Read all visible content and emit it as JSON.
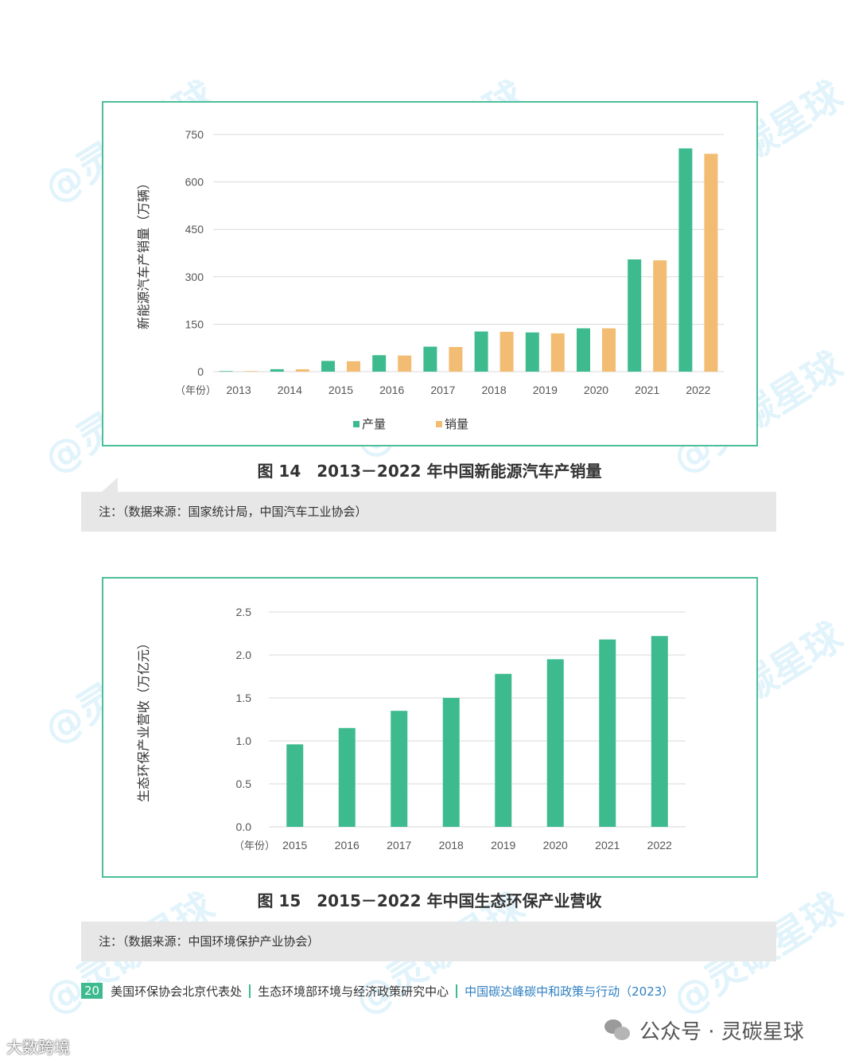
{
  "page": {
    "watermark": "@灵碳星球",
    "page_number": "20",
    "footer_org1": "美国环保协会北京代表处",
    "footer_org2": "生态环境部环境与经济政策研究中心",
    "footer_title": "中国碳达峰碳中和政策与行动（2023）",
    "wechat_label": "公众号 · 灵碳星球",
    "brand_corner": "大数跨境",
    "colors": {
      "frame": "#4dbf98",
      "green": "#3dbb8f",
      "orange": "#f2bd73",
      "note_bg": "#e7e7e7"
    }
  },
  "figure14": {
    "caption": "图 14　2013－2022 年中国新能源汽车产销量",
    "note": "注：（数据来源：国家统计局，中国汽车工业协会）"
  },
  "figure15": {
    "caption": "图 15　2015－2022 年中国生态环保产业营收",
    "note": "注：（数据来源：中国环境保护产业协会）"
  },
  "chart_data": [
    {
      "type": "bar",
      "title": "",
      "xlabel": "（年份）",
      "ylabel": "新能源汽车产销量（万辆）",
      "categories": [
        "2013",
        "2014",
        "2015",
        "2016",
        "2017",
        "2018",
        "2019",
        "2020",
        "2021",
        "2022"
      ],
      "series": [
        {
          "name": "产量",
          "color": "#3dbb8f",
          "values": [
            1.8,
            7.9,
            34,
            52,
            79,
            127,
            124,
            137,
            355,
            706
          ]
        },
        {
          "name": "销量",
          "color": "#f2bd73",
          "values": [
            1.8,
            7.5,
            33,
            51,
            78,
            126,
            121,
            137,
            352,
            689
          ]
        }
      ],
      "yticks": [
        "0",
        "150",
        "300",
        "450",
        "600",
        "750"
      ],
      "ylim": [
        0,
        750
      ],
      "grid": true,
      "legend": "bottom"
    },
    {
      "type": "bar",
      "title": "",
      "xlabel": "（年份）",
      "ylabel": "生态环保产业营收（万亿元）",
      "categories": [
        "2015",
        "2016",
        "2017",
        "2018",
        "2019",
        "2020",
        "2021",
        "2022"
      ],
      "series": [
        {
          "color": "#3dbb8f",
          "values": [
            0.96,
            1.15,
            1.35,
            1.5,
            1.78,
            1.95,
            2.18,
            2.22
          ]
        }
      ],
      "yticks": [
        "0.0",
        "0.5",
        "1.0",
        "1.5",
        "2.0",
        "2.5"
      ],
      "ylim": [
        0,
        2.5
      ],
      "grid": true,
      "legend": "none"
    }
  ]
}
